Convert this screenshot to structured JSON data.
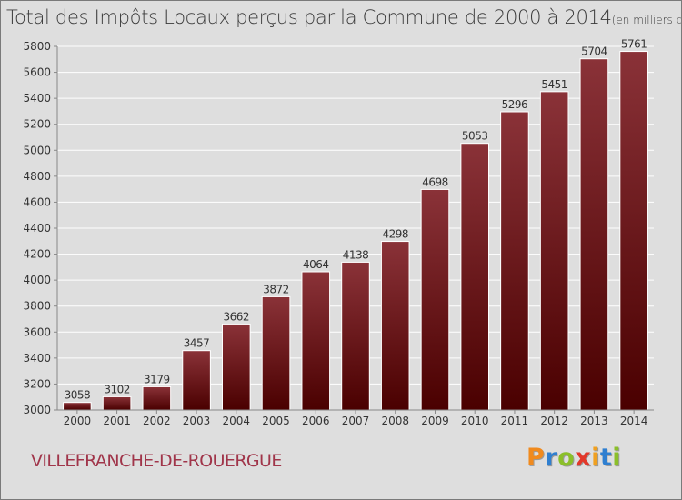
{
  "title": "Total des Impôts Locaux perçus par la Commune de 2000 à 2014",
  "title_unit": "(en milliers d'€)",
  "commune": "VILLEFRANCHE-DE-ROUERGUE",
  "logo": {
    "text": "Proxiti",
    "letter_colors": [
      "#f08a1e",
      "#2f7fd0",
      "#8bbf2a",
      "#e2382a",
      "#f0a020",
      "#2f7fd0",
      "#8bbf2a"
    ]
  },
  "colors": {
    "bar_top": "#8a3238",
    "bar_bottom": "#4a0000",
    "grid": "#ffffff",
    "plot_bg": "#dedede"
  },
  "chart_data": {
    "type": "bar",
    "title": "Total des Impôts Locaux perçus par la Commune de 2000 à 2014",
    "xlabel": "",
    "ylabel": "",
    "categories": [
      "2000",
      "2001",
      "2002",
      "2003",
      "2004",
      "2005",
      "2006",
      "2007",
      "2008",
      "2009",
      "2010",
      "2011",
      "2012",
      "2013",
      "2014"
    ],
    "values": [
      3058,
      3102,
      3179,
      3457,
      3662,
      3872,
      4064,
      4138,
      4298,
      4698,
      5053,
      5296,
      5451,
      5704,
      5761
    ],
    "ylim": [
      3000,
      5800
    ],
    "yticks": [
      3000,
      3200,
      3400,
      3600,
      3800,
      4000,
      4200,
      4400,
      4600,
      4800,
      5000,
      5200,
      5400,
      5600,
      5800
    ],
    "grid": true,
    "legend": "none"
  }
}
